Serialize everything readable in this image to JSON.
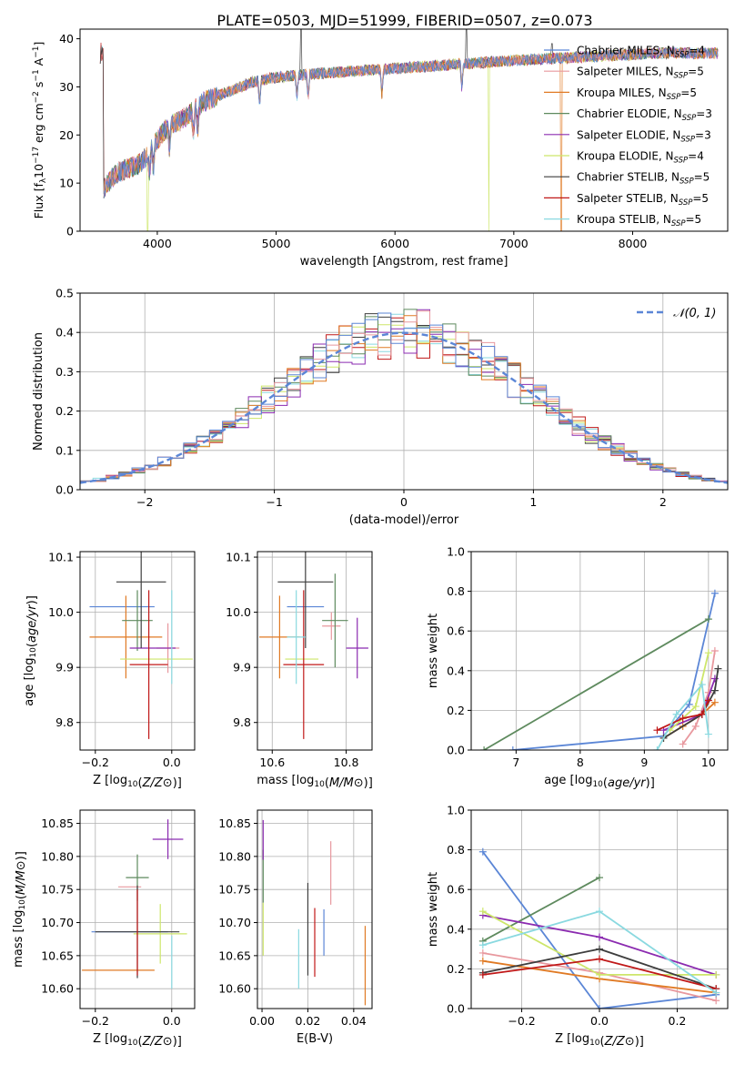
{
  "title": "PLATE=0503, MJD=51999, FIBERID=0507, z=0.073",
  "colors": {
    "chabrier_miles": "#5b86d6",
    "salpeter_miles": "#e8989e",
    "kroupa_miles": "#e07a24",
    "chabrier_elodie": "#5e8a5e",
    "salpeter_elodie": "#8b2bb0",
    "kroupa_elodie": "#cde66a",
    "chabrier_stelib": "#3e3e3e",
    "salpeter_stelib": "#c01818",
    "kroupa_stelib": "#8ad9e0"
  },
  "chart_data": [
    {
      "id": "spectrum",
      "type": "line",
      "xlabel": "wavelength [Angstrom, rest frame]",
      "ylabel": "Flux [f_λ10^-17 erg cm^-2 s^-1 A^-1]",
      "xlim": [
        3350,
        8800
      ],
      "ylim": [
        0,
        42
      ],
      "xticks": [
        4000,
        5000,
        6000,
        7000,
        8000
      ],
      "yticks": [
        0,
        10,
        20,
        30,
        40
      ],
      "legend_position": "right",
      "legend": [
        {
          "label": "Chabrier MILES, N",
          "sub": "SSP",
          "val": "=4",
          "color_key": "chabrier_miles"
        },
        {
          "label": "Salpeter MILES, N",
          "sub": "SSP",
          "val": "=5",
          "color_key": "salpeter_miles"
        },
        {
          "label": "Kroupa MILES, N",
          "sub": "SSP",
          "val": "=5",
          "color_key": "kroupa_miles"
        },
        {
          "label": "Chabrier ELODIE, N",
          "sub": "SSP",
          "val": "=3",
          "color_key": "chabrier_elodie"
        },
        {
          "label": "Salpeter ELODIE, N",
          "sub": "SSP",
          "val": "=3",
          "color_key": "salpeter_elodie"
        },
        {
          "label": "Kroupa ELODIE, N",
          "sub": "SSP",
          "val": "=4",
          "color_key": "kroupa_elodie"
        },
        {
          "label": "Chabrier STELIB, N",
          "sub": "SSP",
          "val": "=5",
          "color_key": "chabrier_stelib"
        },
        {
          "label": "Salpeter STELIB, N",
          "sub": "SSP",
          "val": "=5",
          "color_key": "salpeter_stelib"
        },
        {
          "label": "Kroupa STELIB, N",
          "sub": "SSP",
          "val": "=5",
          "color_key": "kroupa_stelib"
        }
      ],
      "continuum": [
        [
          3550,
          9
        ],
        [
          3650,
          12
        ],
        [
          3750,
          13
        ],
        [
          3850,
          14
        ],
        [
          3950,
          17
        ],
        [
          4000,
          19
        ],
        [
          4100,
          22
        ],
        [
          4200,
          23
        ],
        [
          4300,
          25
        ],
        [
          4400,
          27
        ],
        [
          4500,
          28
        ],
        [
          4600,
          29
        ],
        [
          4800,
          31
        ],
        [
          5000,
          32
        ],
        [
          5200,
          32.5
        ],
        [
          5500,
          33
        ],
        [
          5800,
          33.5
        ],
        [
          6100,
          34
        ],
        [
          6400,
          34.5
        ],
        [
          6700,
          35
        ],
        [
          7000,
          35.5
        ],
        [
          7400,
          36
        ],
        [
          7800,
          36.5
        ],
        [
          8200,
          37
        ],
        [
          8700,
          37
        ]
      ],
      "dips": [
        {
          "wave": 3920,
          "series": "kroupa_elodie",
          "flux": 0
        },
        {
          "wave": 6790,
          "series": "kroupa_elodie",
          "flux": 0
        },
        {
          "wave": 7400,
          "series": "kroupa_miles",
          "flux": 0
        }
      ]
    },
    {
      "id": "residuals",
      "type": "histogram",
      "xlabel": "(data-model)/error",
      "ylabel": "Normed distribution",
      "xlim": [
        -2.5,
        2.5
      ],
      "ylim": [
        0,
        0.5
      ],
      "xticks": [
        -2,
        -1,
        0,
        1,
        2
      ],
      "yticks": [
        0.0,
        0.1,
        0.2,
        0.3,
        0.4,
        0.5
      ],
      "bin_width": 0.1,
      "gaussian_label": "𝒩(0, 1)",
      "legend_position": "top-right"
    },
    {
      "id": "age_vs_Z",
      "type": "scatter",
      "xlabel": "Z [log10(Z/Z⊙)]",
      "ylabel": "age [log10(age/yr)]",
      "xlim": [
        -0.24,
        0.06
      ],
      "ylim": [
        9.75,
        10.11
      ],
      "xticks": [
        -0.2,
        0.0
      ],
      "yticks": [
        9.8,
        9.9,
        10.0,
        10.1
      ],
      "points": [
        {
          "key": "chabrier_miles",
          "x": -0.13,
          "y": 10.01,
          "xerr": 0.085,
          "yerr": 0.0
        },
        {
          "key": "salpeter_miles",
          "x": -0.01,
          "y": 9.935,
          "xerr": 0.03,
          "yerr": 0.045
        },
        {
          "key": "kroupa_miles",
          "x": -0.12,
          "y": 9.955,
          "xerr": 0.095,
          "yerr": 0.075
        },
        {
          "key": "chabrier_elodie",
          "x": -0.09,
          "y": 9.985,
          "xerr": 0.04,
          "yerr": 0.055
        },
        {
          "key": "salpeter_elodie",
          "x": -0.05,
          "y": 9.935,
          "xerr": 0.06,
          "yerr": 0.0
        },
        {
          "key": "kroupa_elodie",
          "x": -0.04,
          "y": 9.915,
          "xerr": 0.095,
          "yerr": 0.0
        },
        {
          "key": "chabrier_stelib",
          "x": -0.08,
          "y": 10.055,
          "xerr": 0.065,
          "yerr": 0.12
        },
        {
          "key": "salpeter_stelib",
          "x": -0.06,
          "y": 9.905,
          "xerr": 0.05,
          "yerr": 0.135
        },
        {
          "key": "kroupa_stelib",
          "x": 0.0,
          "y": 9.955,
          "xerr": 0.0,
          "yerr": 0.085
        }
      ]
    },
    {
      "id": "age_vs_mass",
      "type": "scatter",
      "xlabel": "mass [log10(M/M⊙)]",
      "ylabel": "",
      "xlim": [
        10.56,
        10.87
      ],
      "ylim": [
        9.75,
        10.11
      ],
      "xticks": [
        10.6,
        10.8
      ],
      "yticks": [
        9.8,
        9.9,
        10.0,
        10.1
      ],
      "points": [
        {
          "key": "chabrier_miles",
          "x": 10.69,
          "y": 10.01,
          "xerr": 0.05,
          "yerr": 0.0
        },
        {
          "key": "salpeter_miles",
          "x": 10.76,
          "y": 9.975,
          "xerr": 0.025,
          "yerr": 0.025
        },
        {
          "key": "kroupa_miles",
          "x": 10.62,
          "y": 9.955,
          "xerr": 0.055,
          "yerr": 0.075
        },
        {
          "key": "chabrier_elodie",
          "x": 10.77,
          "y": 9.985,
          "xerr": 0.035,
          "yerr": 0.085
        },
        {
          "key": "salpeter_elodie",
          "x": 10.83,
          "y": 9.935,
          "xerr": 0.03,
          "yerr": 0.055
        },
        {
          "key": "kroupa_elodie",
          "x": 10.68,
          "y": 9.915,
          "xerr": 0.045,
          "yerr": 0.0
        },
        {
          "key": "chabrier_stelib",
          "x": 10.69,
          "y": 10.055,
          "xerr": 0.075,
          "yerr": 0.12
        },
        {
          "key": "salpeter_stelib",
          "x": 10.685,
          "y": 9.905,
          "xerr": 0.055,
          "yerr": 0.135
        },
        {
          "key": "kroupa_stelib",
          "x": 10.665,
          "y": 9.955,
          "xerr": 0.025,
          "yerr": 0.085
        }
      ]
    },
    {
      "id": "weight_vs_age",
      "type": "line",
      "xlabel": "age [log10(age/yr)]",
      "ylabel": "mass weight",
      "xlim": [
        6.3,
        10.3
      ],
      "ylim": [
        0,
        1
      ],
      "xticks": [
        7,
        8,
        9,
        10
      ],
      "yticks": [
        0.0,
        0.2,
        0.4,
        0.6,
        0.8,
        1.0
      ],
      "series": [
        {
          "key": "chabrier_miles",
          "x": [
            6.95,
            9.3,
            9.7,
            10.1
          ],
          "y": [
            0.0,
            0.07,
            0.23,
            0.79
          ]
        },
        {
          "key": "salpeter_miles",
          "x": [
            9.6,
            9.8,
            10.0,
            10.1
          ],
          "y": [
            0.03,
            0.12,
            0.29,
            0.5
          ]
        },
        {
          "key": "kroupa_miles",
          "x": [
            9.3,
            9.6,
            9.9,
            10.1
          ],
          "y": [
            0.06,
            0.12,
            0.18,
            0.24
          ]
        },
        {
          "key": "chabrier_elodie",
          "x": [
            6.5,
            10.0
          ],
          "y": [
            0.0,
            0.66
          ]
        },
        {
          "key": "salpeter_elodie",
          "x": [
            9.3,
            9.9,
            10.1
          ],
          "y": [
            0.1,
            0.18,
            0.36
          ]
        },
        {
          "key": "kroupa_elodie",
          "x": [
            9.4,
            9.8,
            10.0
          ],
          "y": [
            0.1,
            0.22,
            0.49
          ]
        },
        {
          "key": "chabrier_stelib",
          "x": [
            9.3,
            9.9,
            10.1,
            10.15
          ],
          "y": [
            0.06,
            0.18,
            0.3,
            0.41
          ]
        },
        {
          "key": "salpeter_stelib",
          "x": [
            9.2,
            9.6,
            9.9,
            10.0
          ],
          "y": [
            0.1,
            0.16,
            0.18,
            0.25
          ]
        },
        {
          "key": "kroupa_stelib",
          "x": [
            9.2,
            9.5,
            9.9,
            10.0
          ],
          "y": [
            0.0,
            0.18,
            0.33,
            0.08
          ]
        }
      ]
    },
    {
      "id": "mass_vs_Z",
      "type": "scatter",
      "xlabel": "Z [log10(Z/Z⊙)]",
      "ylabel": "mass [log10(M/M⊙)]",
      "xlim": [
        -0.24,
        0.06
      ],
      "ylim": [
        10.57,
        10.87
      ],
      "xticks": [
        -0.2,
        0.0
      ],
      "yticks": [
        10.6,
        10.65,
        10.7,
        10.75,
        10.8,
        10.85
      ],
      "points": [
        {
          "key": "chabrier_miles",
          "x": -0.11,
          "y": 10.686,
          "xerr": 0.1,
          "yerr": 0.0
        },
        {
          "key": "salpeter_miles",
          "x": -0.11,
          "y": 10.754,
          "xerr": 0.03,
          "yerr": 0.0
        },
        {
          "key": "kroupa_miles",
          "x": -0.14,
          "y": 10.628,
          "xerr": 0.095,
          "yerr": 0.0
        },
        {
          "key": "chabrier_elodie",
          "x": -0.09,
          "y": 10.768,
          "xerr": 0.03,
          "yerr": 0.035
        },
        {
          "key": "salpeter_elodie",
          "x": -0.01,
          "y": 10.826,
          "xerr": 0.04,
          "yerr": 0.03
        },
        {
          "key": "kroupa_elodie",
          "x": -0.03,
          "y": 10.683,
          "xerr": 0.07,
          "yerr": 0.045
        },
        {
          "key": "chabrier_stelib",
          "x": -0.09,
          "y": 10.686,
          "xerr": 0.11,
          "yerr": 0.07
        },
        {
          "key": "salpeter_stelib",
          "x": -0.09,
          "y": 10.685,
          "xerr": 0.0,
          "yerr": 0.065
        },
        {
          "key": "kroupa_stelib",
          "x": 0.0,
          "y": 10.64,
          "xerr": 0.0,
          "yerr": 0.04
        }
      ]
    },
    {
      "id": "mass_vs_ebv",
      "type": "scatter",
      "xlabel": "E(B-V)",
      "ylabel": "",
      "xlim": [
        -0.002,
        0.048
      ],
      "ylim": [
        10.57,
        10.87
      ],
      "xticks": [
        0.0,
        0.02,
        0.04
      ],
      "yticks": [
        10.6,
        10.65,
        10.7,
        10.75,
        10.8,
        10.85
      ],
      "points": [
        {
          "key": "chabrier_miles",
          "x": 0.027,
          "y": 10.685,
          "yerr": 0.035
        },
        {
          "key": "salpeter_miles",
          "x": 0.03,
          "y": 10.775,
          "yerr": 0.048
        },
        {
          "key": "kroupa_miles",
          "x": 0.045,
          "y": 10.635,
          "yerr": 0.06
        },
        {
          "key": "chabrier_elodie",
          "x": 0.0005,
          "y": 10.77,
          "yerr": 0.04
        },
        {
          "key": "salpeter_elodie",
          "x": 0.0005,
          "y": 10.825,
          "yerr": 0.03
        },
        {
          "key": "kroupa_elodie",
          "x": 0.0005,
          "y": 10.69,
          "yerr": 0.04
        },
        {
          "key": "chabrier_stelib",
          "x": 0.02,
          "y": 10.69,
          "yerr": 0.07
        },
        {
          "key": "salpeter_stelib",
          "x": 0.023,
          "y": 10.67,
          "yerr": 0.052
        },
        {
          "key": "kroupa_stelib",
          "x": 0.016,
          "y": 10.645,
          "yerr": 0.045
        }
      ]
    },
    {
      "id": "weight_vs_Z",
      "type": "line",
      "xlabel": "Z [log10(Z/Z⊙)]",
      "ylabel": "mass weight",
      "xlim": [
        -0.33,
        0.33
      ],
      "ylim": [
        0,
        1
      ],
      "xticks": [
        -0.2,
        0.0,
        0.2
      ],
      "yticks": [
        0.0,
        0.2,
        0.4,
        0.6,
        0.8,
        1.0
      ],
      "series": [
        {
          "key": "chabrier_miles",
          "x": [
            -0.3,
            0.0,
            0.3
          ],
          "y": [
            0.79,
            0.0,
            0.07
          ]
        },
        {
          "key": "salpeter_miles",
          "x": [
            -0.3,
            0.0,
            0.3
          ],
          "y": [
            0.28,
            0.18,
            0.04
          ]
        },
        {
          "key": "kroupa_miles",
          "x": [
            -0.3,
            0.0,
            0.3
          ],
          "y": [
            0.24,
            0.15,
            0.08
          ]
        },
        {
          "key": "chabrier_elodie",
          "x": [
            -0.3,
            0.0
          ],
          "y": [
            0.34,
            0.66
          ]
        },
        {
          "key": "salpeter_elodie",
          "x": [
            -0.3,
            0.0,
            0.3
          ],
          "y": [
            0.47,
            0.36,
            0.17
          ]
        },
        {
          "key": "kroupa_elodie",
          "x": [
            -0.3,
            0.0,
            0.3
          ],
          "y": [
            0.49,
            0.17,
            0.17
          ]
        },
        {
          "key": "chabrier_stelib",
          "x": [
            -0.3,
            0.0,
            0.3
          ],
          "y": [
            0.18,
            0.3,
            0.1
          ]
        },
        {
          "key": "salpeter_stelib",
          "x": [
            -0.3,
            0.0,
            0.3
          ],
          "y": [
            0.17,
            0.25,
            0.1
          ]
        },
        {
          "key": "kroupa_stelib",
          "x": [
            -0.3,
            0.0,
            0.3
          ],
          "y": [
            0.32,
            0.49,
            0.08
          ]
        }
      ]
    }
  ]
}
